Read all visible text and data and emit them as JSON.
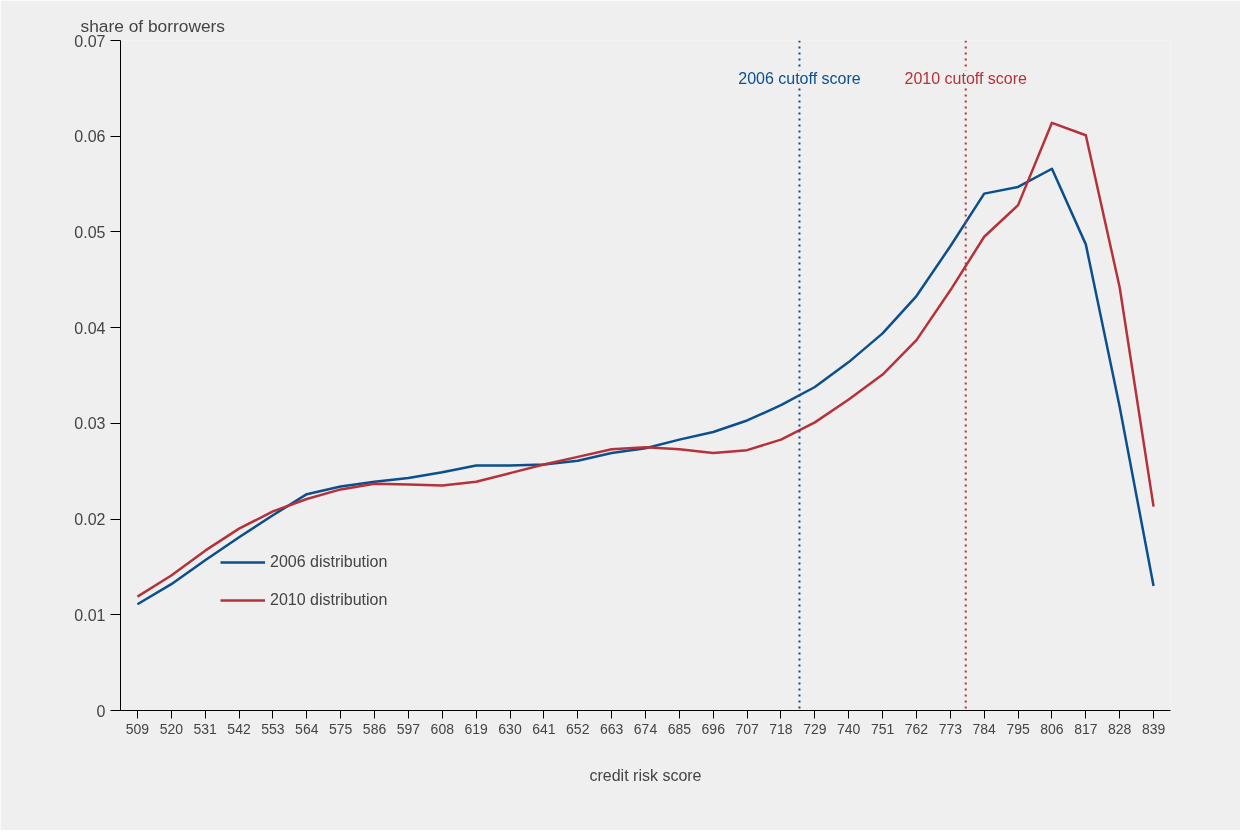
{
  "chart_data": {
    "type": "line",
    "xlabel": "credit risk score",
    "ylabel": "share of borrowers",
    "x": [
      509,
      520,
      531,
      542,
      553,
      564,
      575,
      586,
      597,
      608,
      619,
      630,
      641,
      652,
      663,
      674,
      685,
      696,
      707,
      718,
      729,
      740,
      751,
      762,
      773,
      784,
      795,
      806,
      817,
      828,
      839
    ],
    "series": [
      {
        "name": "2006 distribution",
        "color": "#0b4f8c",
        "values": [
          0.0111,
          0.0132,
          0.0157,
          0.0181,
          0.0204,
          0.0226,
          0.0234,
          0.0239,
          0.0243,
          0.0249,
          0.0256,
          0.0256,
          0.0257,
          0.0261,
          0.0269,
          0.0274,
          0.0283,
          0.0291,
          0.0303,
          0.0319,
          0.0338,
          0.0364,
          0.0394,
          0.0433,
          0.0485,
          0.054,
          0.0547,
          0.0566,
          0.0487,
          0.0317,
          0.013
        ]
      },
      {
        "name": "2010 distribution",
        "color": "#b5323a",
        "values": [
          0.0119,
          0.0141,
          0.0167,
          0.019,
          0.0208,
          0.0221,
          0.0231,
          0.0237,
          0.0236,
          0.0235,
          0.0239,
          0.0248,
          0.0257,
          0.0265,
          0.0273,
          0.0275,
          0.0273,
          0.0269,
          0.0272,
          0.0283,
          0.0301,
          0.0325,
          0.0351,
          0.0387,
          0.0439,
          0.0495,
          0.0528,
          0.0614,
          0.0601,
          0.0442,
          0.0213
        ]
      }
    ],
    "xlim": [
      503.5,
      844.5
    ],
    "ylim": [
      0,
      0.07
    ],
    "xticks": [
      509,
      520,
      531,
      542,
      553,
      564,
      575,
      586,
      597,
      608,
      619,
      630,
      641,
      652,
      663,
      674,
      685,
      696,
      707,
      718,
      729,
      740,
      751,
      762,
      773,
      784,
      795,
      806,
      817,
      828,
      839
    ],
    "yticks": [
      0,
      0.01,
      0.02,
      0.03,
      0.04,
      0.05,
      0.06,
      0.07
    ],
    "ref_lines": [
      {
        "axis": "x",
        "value": 724,
        "label": "2006 cutoff score",
        "color": "#0b4f8c",
        "line_style": "dotted"
      },
      {
        "axis": "x",
        "value": 778,
        "label": "2010 cutoff score",
        "color": "#b5323a",
        "line_style": "dotted"
      }
    ],
    "grid": false,
    "legend": "bottom left",
    "marker": "none",
    "line_style": "solid"
  }
}
